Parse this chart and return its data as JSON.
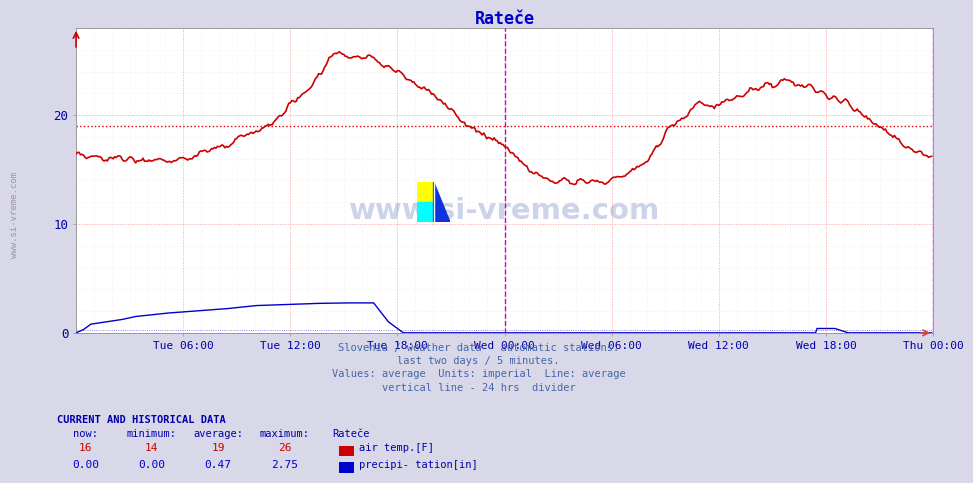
{
  "title": "Rateče",
  "title_color": "#0000cc",
  "bg_color": "#d8d8e8",
  "plot_bg_color": "#ffffff",
  "grid_color_major": "#ffaaaa",
  "grid_color_minor": "#ffdddd",
  "tick_label_color": "#0000aa",
  "x_tick_labels": [
    "Tue 06:00",
    "Tue 12:00",
    "Tue 18:00",
    "Wed 00:00",
    "Wed 06:00",
    "Wed 12:00",
    "Wed 18:00",
    "Thu 00:00"
  ],
  "ylim": [
    0,
    28
  ],
  "yticks": [
    0,
    10,
    20
  ],
  "avg_line_value": 19,
  "avg_line_color": "#dd0000",
  "vertical_line_color": "#cc00cc",
  "watermark_text": "www.si-vreme.com",
  "watermark_color": "#3355aa",
  "watermark_alpha": 0.25,
  "footer_lines": [
    "Slovenia / weather data - automatic stations.",
    "last two days / 5 minutes.",
    "Values: average  Units: imperial  Line: average",
    "vertical line - 24 hrs  divider"
  ],
  "footer_color": "#4466aa",
  "table_header": "CURRENT AND HISTORICAL DATA",
  "table_header_color": "#0000aa",
  "table_col_headers": [
    "now:",
    "minimum:",
    "average:",
    "maximum:",
    "Rateče"
  ],
  "table_row1": [
    "16",
    "14",
    "19",
    "26"
  ],
  "table_row1_label": "air temp.[F]",
  "table_row1_color": "#cc0000",
  "table_row2": [
    "0.00",
    "0.00",
    "0.47",
    "2.75"
  ],
  "table_row2_label": "precipi- tation[in]",
  "table_row2_color": "#0000cc",
  "air_temp_color": "#cc0000",
  "precip_color": "#0000cc",
  "sidebar_text": "www.si-vreme.com",
  "sidebar_color": "#888888",
  "n_points": 576
}
